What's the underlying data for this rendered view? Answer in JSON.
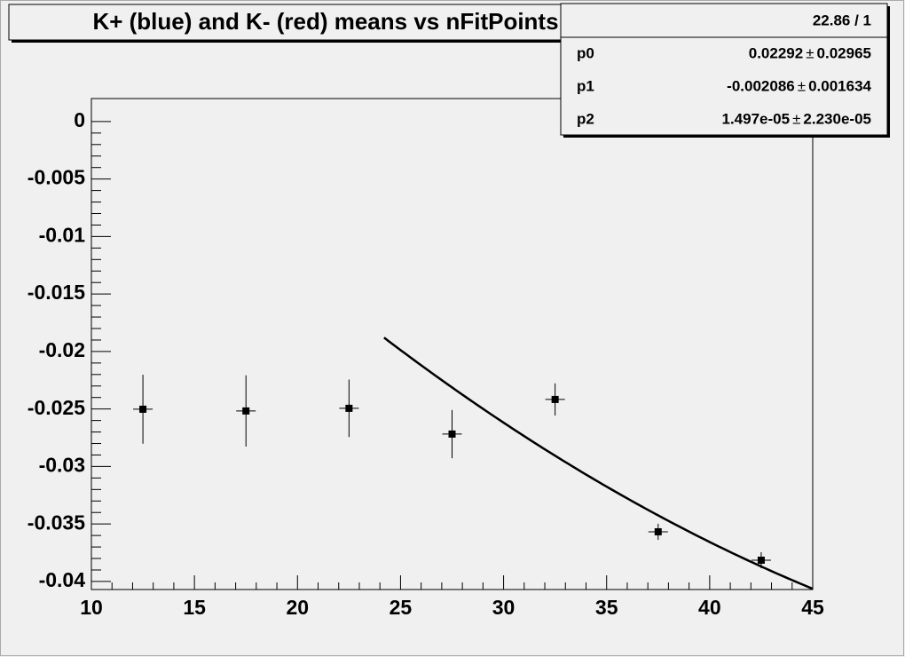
{
  "chart_data": {
    "type": "errorbar",
    "title": "K+ (blue) and K- (red) means vs nFitPoints",
    "x": [
      12.5,
      17.5,
      22.5,
      27.5,
      32.5,
      37.5,
      42.5
    ],
    "values": [
      -0.02502,
      -0.02517,
      -0.02494,
      -0.02718,
      -0.02417,
      -0.03568,
      -0.03815
    ],
    "errors": [
      0.003,
      0.0031,
      0.0025,
      0.0021,
      0.0014,
      0.0007,
      0.0007
    ],
    "color": "#000000",
    "xlim": [
      10,
      45
    ],
    "xticks": [
      10,
      15,
      20,
      25,
      30,
      35,
      40,
      45
    ],
    "ylim": [
      -0.0407,
      0.002
    ],
    "yticks": [
      -0.04,
      -0.035,
      -0.03,
      -0.025,
      -0.02,
      -0.015,
      -0.01,
      -0.005,
      0
    ],
    "fit": {
      "chi2_label": "22.86 / 1",
      "pm": "±",
      "range": [
        24.2,
        45
      ],
      "params": [
        {
          "name": "p0",
          "value": 0.02292,
          "value_label": "0.02292",
          "error": 0.02965,
          "error_label": "0.02965"
        },
        {
          "name": "p1",
          "value": -0.002086,
          "value_label": "-0.002086",
          "error": 0.001634,
          "error_label": "0.001634"
        },
        {
          "name": "p2",
          "value": 1.497e-05,
          "value_label": "1.497e-05",
          "error": 2.23e-05,
          "error_label": "2.230e-05"
        }
      ]
    }
  }
}
